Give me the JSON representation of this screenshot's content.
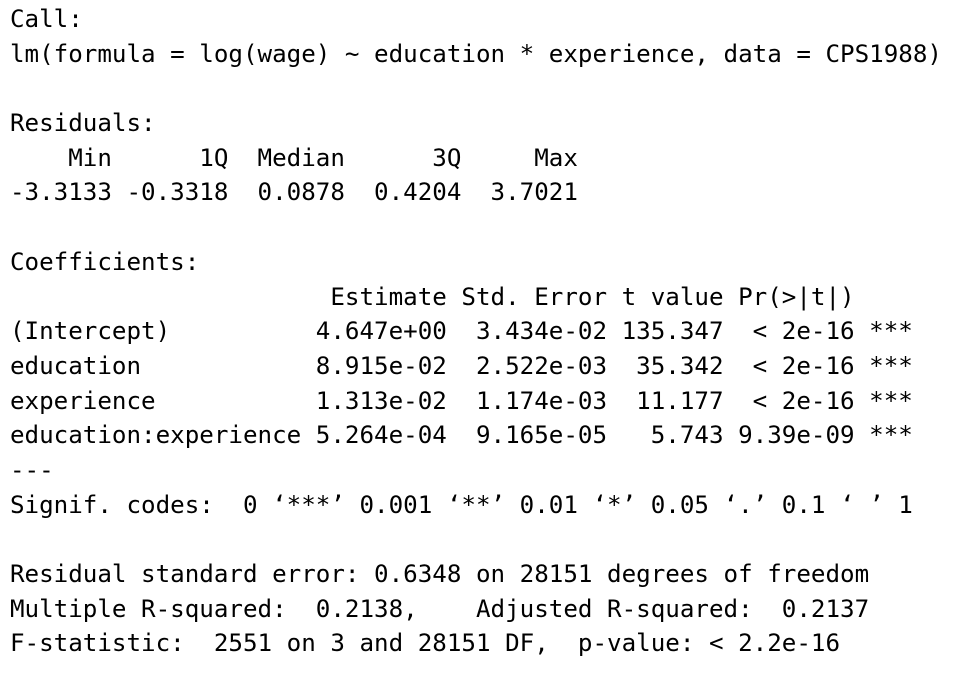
{
  "lines": [
    "Call:",
    "lm(formula = log(wage) ~ education * experience, data = CPS1988)",
    "",
    "Residuals:",
    "    Min      1Q  Median      3Q     Max ",
    "-3.3133 -0.3318  0.0878  0.4204  3.7021 ",
    "",
    "Coefficients:",
    "                      Estimate Std. Error t value Pr(>|t|)    ",
    "(Intercept)          4.647e+00  3.434e-02 135.347  < 2e-16 ***",
    "education            8.915e-02  2.522e-03  35.342  < 2e-16 ***",
    "experience           1.313e-02  1.174e-03  11.177  < 2e-16 ***",
    "education:experience 5.264e-04  9.165e-05   5.743 9.39e-09 ***",
    "---",
    "Signif. codes:  0 ‘***’ 0.001 ‘**’ 0.01 ‘*’ 0.05 ‘.’ 0.1 ‘ ’ 1",
    "",
    "Residual standard error: 0.6348 on 28151 degrees of freedom",
    "Multiple R-squared:  0.2138,\tAdjusted R-squared:  0.2137 ",
    "F-statistic:  2551 on 3 and 28151 DF,  p-value: < 2.2e-16"
  ]
}
